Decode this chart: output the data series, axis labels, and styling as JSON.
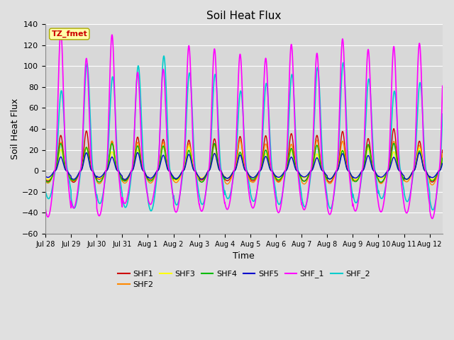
{
  "title": "Soil Heat Flux",
  "xlabel": "Time",
  "ylabel": "Soil Heat Flux",
  "ylim": [
    -60,
    140
  ],
  "yticks": [
    -60,
    -40,
    -20,
    0,
    20,
    40,
    60,
    80,
    100,
    120,
    140
  ],
  "annotation": "TZ_fmet",
  "series_order": [
    "SHF_2",
    "SHF1",
    "SHF2",
    "SHF3",
    "SHF4",
    "SHF5",
    "SHF_1"
  ],
  "legend_order": [
    "SHF1",
    "SHF2",
    "SHF3",
    "SHF4",
    "SHF5",
    "SHF_1",
    "SHF_2"
  ],
  "series": {
    "SHF1": {
      "color": "#cc0000",
      "lw": 1.0
    },
    "SHF2": {
      "color": "#ff8800",
      "lw": 1.0
    },
    "SHF3": {
      "color": "#ffff00",
      "lw": 1.0
    },
    "SHF4": {
      "color": "#00bb00",
      "lw": 1.0
    },
    "SHF5": {
      "color": "#0000cc",
      "lw": 1.0
    },
    "SHF_1": {
      "color": "#ff00ff",
      "lw": 1.2
    },
    "SHF_2": {
      "color": "#00cccc",
      "lw": 1.2
    }
  },
  "bg_color": "#e0e0e0",
  "plot_bg": "#d8d8d8",
  "n_days": 15.5,
  "n_points": 5000,
  "tick_labels": [
    "Jul 28",
    "Jul 29",
    "Jul 30",
    "Jul 31",
    "Aug 1",
    "Aug 2",
    "Aug 3",
    "Aug 4",
    "Aug 5",
    "Aug 6",
    "Aug 7",
    "Aug 8",
    "Aug 9",
    "Aug 10",
    "Aug 11",
    "Aug 12"
  ],
  "amp_SHF1": 35,
  "amp_SHF2": 28,
  "amp_SHF3": 20,
  "amp_SHF4": 22,
  "amp_SHF5": 15,
  "amp_SHF_1": 115,
  "amp_SHF_2": 92,
  "neg_SHF1": 10,
  "neg_SHF2": 12,
  "neg_SHF3": 8,
  "neg_SHF4": 9,
  "neg_SHF5": 7,
  "neg_SHF_1": 38,
  "neg_SHF_2": 32
}
